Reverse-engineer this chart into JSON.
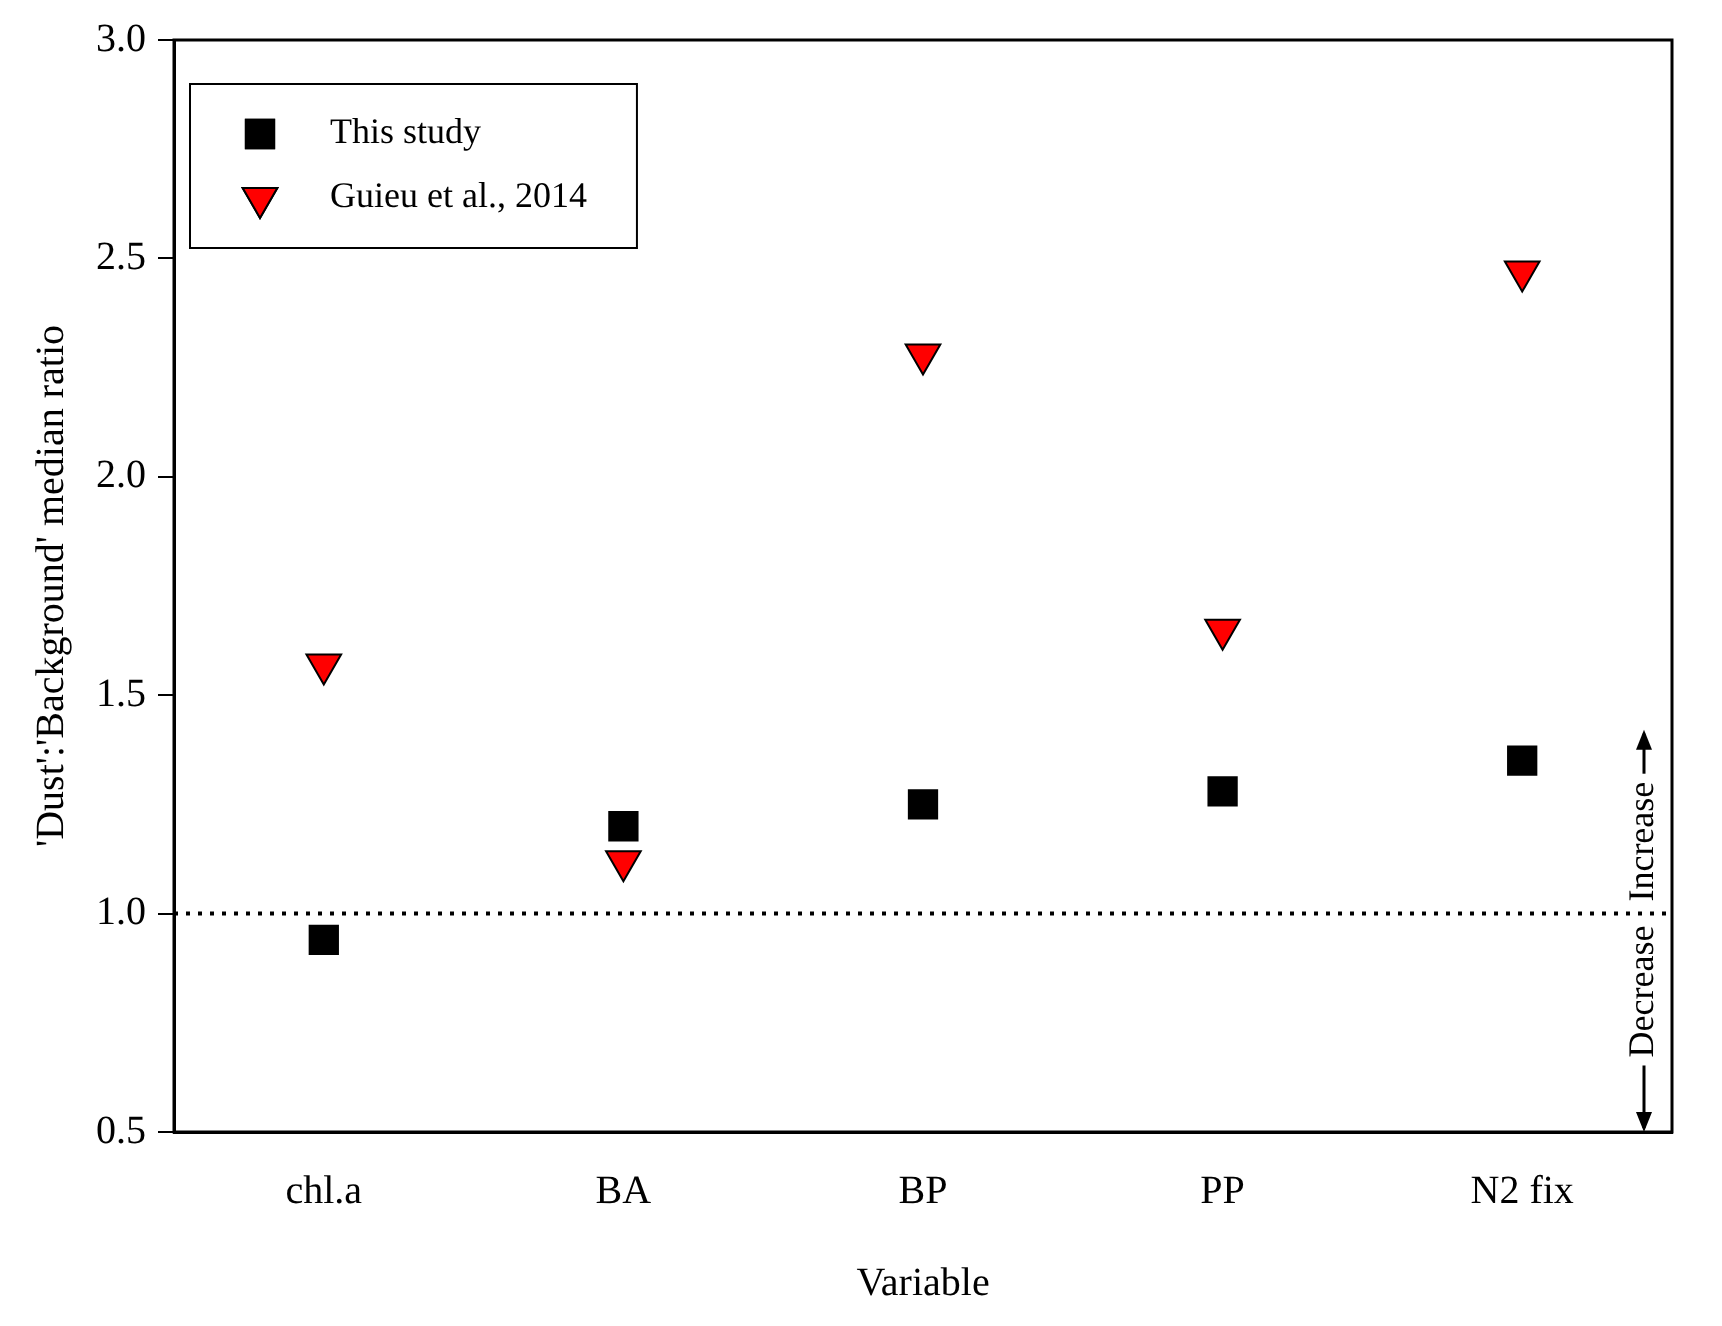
{
  "chart_data": {
    "type": "scatter",
    "xlabel": "Variable",
    "ylabel": "'Dust':'Background' median ratio",
    "categories": [
      "chl.a",
      "BA",
      "BP",
      "PP",
      "N2 fix"
    ],
    "series": [
      {
        "name": "This study",
        "color": "#000000",
        "marker": "square",
        "values": [
          0.94,
          1.2,
          1.25,
          1.28,
          1.35
        ]
      },
      {
        "name": "Guieu et al., 2014",
        "color": "#ff0000",
        "marker": "triangle",
        "values": [
          1.57,
          1.12,
          2.28,
          1.65,
          2.47
        ]
      }
    ],
    "ylim": [
      0.5,
      3.0
    ],
    "yticks": [
      {
        "value": 0.5,
        "label": "0.5"
      },
      {
        "value": 1,
        "label": "1.0"
      },
      {
        "value": 1.5,
        "label": "1.5"
      },
      {
        "value": 2,
        "label": "2.0"
      },
      {
        "value": 2.5,
        "label": "2.5"
      },
      {
        "value": 3,
        "label": "3.0"
      }
    ],
    "ref_lines": [
      {
        "axis": "y",
        "value": 1.0,
        "line_style": "dotted"
      }
    ],
    "annotations": [
      "Increase",
      "Decrease"
    ],
    "grid": false,
    "legend": "top left"
  }
}
